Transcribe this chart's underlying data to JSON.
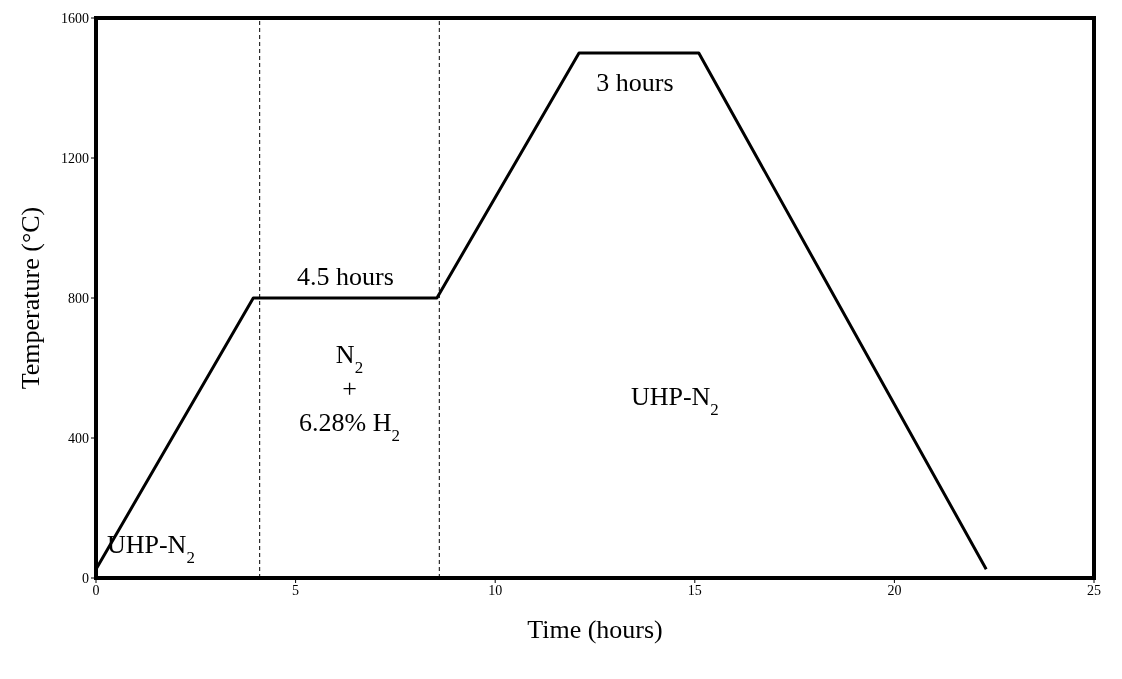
{
  "chart_data": {
    "type": "line",
    "xlabel": "Time (hours)",
    "ylabel": "Temperature (°C)",
    "x": [
      0,
      3.94,
      8.54,
      12.1,
      15.1,
      22.3
    ],
    "series": [
      {
        "color": "#000000",
        "values": [
          25,
          800,
          800,
          1500,
          1500,
          25
        ]
      }
    ],
    "xlim": [
      0,
      25
    ],
    "xticks": [
      0,
      5,
      10,
      15,
      20,
      25
    ],
    "ylim": [
      0,
      1600
    ],
    "yticks": [
      0,
      400,
      800,
      1200,
      1600
    ],
    "grid": false,
    "marker": "none",
    "line_style": "solid",
    "ref_lines": [
      {
        "axis": "x",
        "value": 4.1,
        "line_style": "dashed",
        "color": "#000000"
      },
      {
        "axis": "x",
        "value": 8.6,
        "line_style": "dashed",
        "color": "#000000"
      }
    ],
    "annotations": [
      "4.5 hours",
      "3 hours",
      "UHP-N$_{2}$",
      "N$_{2}$\n+\n6.28% H$_{2}$",
      "UHP-N$_{2}$"
    ]
  }
}
